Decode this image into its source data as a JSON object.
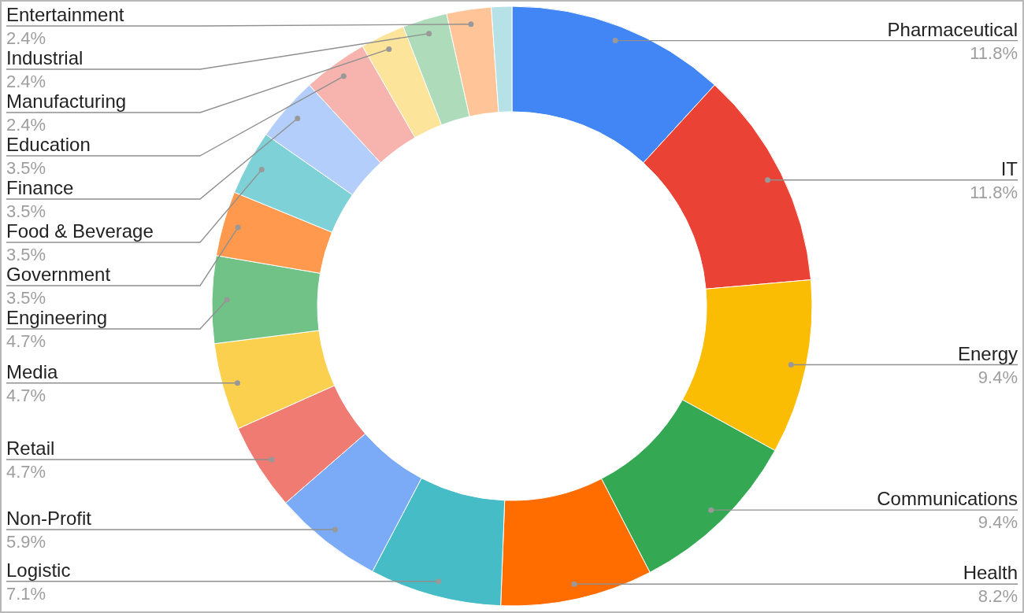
{
  "chart_data": {
    "type": "donut",
    "categories": [
      "Pharmaceutical",
      "IT",
      "Energy",
      "Communications",
      "Health",
      "Logistic",
      "Non-Profit",
      "Retail",
      "Media",
      "Engineering",
      "Government",
      "Food & Beverage",
      "Finance",
      "Education",
      "Manufacturing",
      "Industrial",
      "Entertainment",
      null
    ],
    "values": [
      11.8,
      11.8,
      9.4,
      9.4,
      8.2,
      7.1,
      5.9,
      4.7,
      4.7,
      4.7,
      3.5,
      3.5,
      3.5,
      3.5,
      2.4,
      2.4,
      2.4,
      1.1
    ],
    "colors": [
      "#4285f4",
      "#ea4335",
      "#fbbc04",
      "#34a853",
      "#ff6d01",
      "#46bdc6",
      "#7baaf7",
      "#f07b72",
      "#fcd04f",
      "#71c287",
      "#ff994d",
      "#7ed1d7",
      "#b3cefb",
      "#f7b4ae",
      "#fde49b",
      "#aedcba",
      "#ffc599",
      "#b5e1e7"
    ],
    "value_labels": [
      "11.8%",
      "11.8%",
      "9.4%",
      "9.4%",
      "8.2%",
      "7.1%",
      "5.9%",
      "4.7%",
      "4.7%",
      "4.7%",
      "3.5%",
      "3.5%",
      "3.5%",
      "3.5%",
      "2.4%",
      "2.4%",
      "2.4%",
      null
    ]
  }
}
